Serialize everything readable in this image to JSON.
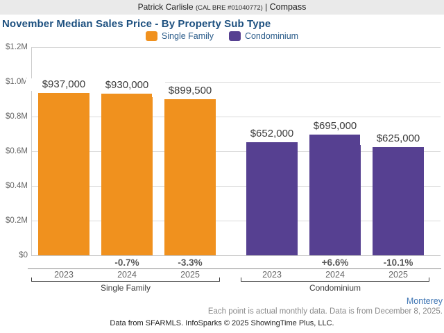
{
  "header": {
    "name": "Patrick Carlisle",
    "license": "(CAL BRE #01040772)",
    "divider": "|",
    "brand": "Compass"
  },
  "title": "November Median Sales Price - By Property Sub Type",
  "legend": [
    {
      "label": "Single Family",
      "color": "#f0911e"
    },
    {
      "label": "Condominium",
      "color": "#564091"
    }
  ],
  "chart_data": {
    "type": "bar",
    "title": "November Median Sales Price - By Property Sub Type",
    "xlabel": "",
    "ylabel": "",
    "ylim": [
      0,
      1200000
    ],
    "ytick_labels": [
      "$0",
      "$0.2M",
      "$0.4M",
      "$0.6M",
      "$0.8M",
      "$1.0M",
      "$1.2M"
    ],
    "grid": true,
    "legend_position": "top",
    "groups": [
      {
        "name": "Single Family",
        "color": "#f0911e",
        "bars": [
          {
            "year": "2023",
            "value": 937000,
            "label": "$937,000",
            "pct_change": ""
          },
          {
            "year": "2024",
            "value": 930000,
            "label": "$930,000",
            "pct_change": "-0.7%"
          },
          {
            "year": "2025",
            "value": 899500,
            "label": "$899,500",
            "pct_change": "-3.3%"
          }
        ]
      },
      {
        "name": "Condominium",
        "color": "#564091",
        "bars": [
          {
            "year": "2023",
            "value": 652000,
            "label": "$652,000",
            "pct_change": ""
          },
          {
            "year": "2024",
            "value": 695000,
            "label": "$695,000",
            "pct_change": "+6.6%"
          },
          {
            "year": "2025",
            "value": 625000,
            "label": "$625,000",
            "pct_change": "-10.1%"
          }
        ]
      }
    ]
  },
  "footer": {
    "region": "Monterey",
    "note": "Each point is actual monthly data. Data is from December 8, 2025.",
    "attribution": "Data from SFARMLS. InfoSparks © 2025 ShowingTime Plus, LLC."
  },
  "colors": {
    "single_family": "#f0911e",
    "condominium": "#564091",
    "title_blue": "#1e5180",
    "link_blue": "#4076b4"
  }
}
